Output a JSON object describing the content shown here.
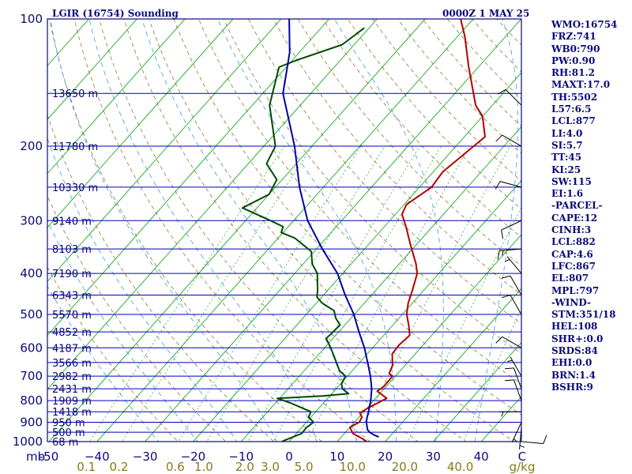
{
  "header": {
    "title": "LGIR (16754) Sounding",
    "datetime": "0000Z  1 MAY 25"
  },
  "colors": {
    "frame": "#0a0a78",
    "isobar": "#0000b4",
    "isotherm": "#00a000",
    "dry_adiabat": "#7a6a20",
    "moist_adiabat": "#3aa0d0",
    "mixing_ratio": "#2a9a2a",
    "temperature": "#b40000",
    "dewpoint": "#004a00",
    "parcel": "#0000aa",
    "mixing_ratio_labels": "#8a7a10"
  },
  "indices": [
    "WMO:16754",
    "FRZ:741",
    "WB0:790",
    "PW:0.90",
    "RH:81.2",
    "MAXT:17.0",
    "TH:5502",
    "L57:6.5",
    "LCL:877",
    "LI:4.0",
    "SI:5.7",
    "TT:45",
    "KI:25",
    "SW:115",
    "EI:1.6",
    "-PARCEL-",
    "CAPE:12",
    "CINH:3",
    "LCL:882",
    "CAP:4.6",
    "LFC:867",
    "EL:807",
    "MPL:797",
    "-WIND-",
    "STM:351/18",
    "HEL:108",
    "SHR+:0.0",
    "SRDS:84",
    "EHI:0.0",
    "BRN:1.4",
    "BSHR:9"
  ],
  "chart_data": {
    "type": "line",
    "chart_kind": "skew-T log-P sounding",
    "pressure_unit_label": "mb",
    "temperature_unit_label": "C",
    "mixing_ratio_unit_label": "g/kg",
    "pressure_range_hpa": [
      100,
      1000
    ],
    "pressure_scale": "log",
    "pressure_ticks": [
      100,
      200,
      300,
      400,
      500,
      600,
      700,
      800,
      900,
      1000
    ],
    "temperature_ticks": [
      -50,
      -40,
      -30,
      -20,
      -10,
      0,
      10,
      20,
      30,
      40
    ],
    "temperature_tick_labels": [
      "-50",
      "−40",
      "−30",
      "−20",
      "−10",
      "0",
      "10",
      "20",
      "30",
      "40"
    ],
    "mixing_ratio_labels": [
      "0.1",
      "0.2",
      "0.6",
      "1.0",
      "2.0",
      "3.0",
      "5.0",
      "10.0",
      "20.0",
      "40.0"
    ],
    "mixing_ratio_lines_gkg": [
      0.1,
      0.2,
      0.6,
      1.0,
      2.0,
      3.0,
      5.0,
      10.0,
      20.0,
      40.0
    ],
    "height_levels": [
      {
        "p": 150,
        "label": "13650 m"
      },
      {
        "p": 200,
        "label": "11780 m"
      },
      {
        "p": 250,
        "label": "10330 m"
      },
      {
        "p": 300,
        "label": "9140 m"
      },
      {
        "p": 350,
        "label": "8103 m"
      },
      {
        "p": 400,
        "label": "7190 m"
      },
      {
        "p": 450,
        "label": "6343 m"
      },
      {
        "p": 500,
        "label": "5570 m"
      },
      {
        "p": 550,
        "label": "4852 m"
      },
      {
        "p": 600,
        "label": "4187 m"
      },
      {
        "p": 650,
        "label": "3566 m"
      },
      {
        "p": 700,
        "label": "2982 m"
      },
      {
        "p": 750,
        "label": "2431 m"
      },
      {
        "p": 800,
        "label": "1909 m"
      },
      {
        "p": 850,
        "label": "1418 m"
      },
      {
        "p": 900,
        "label": "950 m"
      },
      {
        "p": 950,
        "label": "500 m"
      },
      {
        "p": 1000,
        "label": "68 m"
      }
    ],
    "series": [
      {
        "key": "temperature",
        "points": [
          [
            1010,
            17
          ],
          [
            985,
            14.8
          ],
          [
            957,
            11.8
          ],
          [
            925,
            10
          ],
          [
            900,
            11
          ],
          [
            875,
            10.6
          ],
          [
            855,
            9.4
          ],
          [
            850,
            9.6
          ],
          [
            830,
            10.3
          ],
          [
            790,
            12.3
          ],
          [
            760,
            9
          ],
          [
            740,
            9.5
          ],
          [
            700,
            9.4
          ],
          [
            690,
            8.2
          ],
          [
            660,
            7.4
          ],
          [
            620,
            5.2
          ],
          [
            590,
            5
          ],
          [
            560,
            5.4
          ],
          [
            530,
            3.3
          ],
          [
            500,
            0.9
          ],
          [
            470,
            -0.9
          ],
          [
            440,
            -2.3
          ],
          [
            400,
            -4.5
          ],
          [
            380,
            -6.5
          ],
          [
            340,
            -11.5
          ],
          [
            310,
            -15.5
          ],
          [
            290,
            -18.6
          ],
          [
            275,
            -19.5
          ],
          [
            250,
            -17.5
          ],
          [
            230,
            -18
          ],
          [
            190,
            -15.7
          ],
          [
            170,
            -20
          ],
          [
            160,
            -23.5
          ],
          [
            130,
            -32
          ],
          [
            110,
            -38.5
          ],
          [
            100,
            -42.6
          ]
        ]
      },
      {
        "key": "dewpoint",
        "points": [
          [
            1010,
            -2
          ],
          [
            990,
            -1
          ],
          [
            957,
            1.1
          ],
          [
            925,
            1
          ],
          [
            900,
            1.5
          ],
          [
            875,
            -0.5
          ],
          [
            850,
            -1
          ],
          [
            810,
            -6.9
          ],
          [
            790,
            -10.5
          ],
          [
            780,
            -1.5
          ],
          [
            770,
            3.5
          ],
          [
            750,
            1.3
          ],
          [
            730,
            0.2
          ],
          [
            700,
            -0.4
          ],
          [
            680,
            -2.6
          ],
          [
            600,
            -8.7
          ],
          [
            570,
            -11.4
          ],
          [
            560,
            -11.3
          ],
          [
            530,
            -11
          ],
          [
            510,
            -13.2
          ],
          [
            490,
            -14.9
          ],
          [
            470,
            -18.8
          ],
          [
            455,
            -21
          ],
          [
            440,
            -22
          ],
          [
            400,
            -25.3
          ],
          [
            380,
            -28.1
          ],
          [
            355,
            -30.6
          ],
          [
            330,
            -36.5
          ],
          [
            320,
            -40.4
          ],
          [
            310,
            -41.1
          ],
          [
            300,
            -44.8
          ],
          [
            280,
            -53
          ],
          [
            260,
            -50
          ],
          [
            240,
            -51.1
          ],
          [
            220,
            -56.2
          ],
          [
            200,
            -57.6
          ],
          [
            160,
            -66.4
          ],
          [
            130,
            -71.5
          ],
          [
            125,
            -69
          ],
          [
            115,
            -62.5
          ],
          [
            105,
            -61
          ]
        ]
      },
      {
        "key": "parcel",
        "points": [
          [
            975,
            17.8
          ],
          [
            965,
            16.5
          ],
          [
            950,
            15
          ],
          [
            937,
            14.1
          ],
          [
            900,
            12.5
          ],
          [
            882,
            11.9
          ],
          [
            850,
            11
          ],
          [
            800,
            9.4
          ],
          [
            750,
            7.4
          ],
          [
            700,
            4.8
          ],
          [
            650,
            1.7
          ],
          [
            600,
            -1.7
          ],
          [
            550,
            -5.8
          ],
          [
            500,
            -10.1
          ],
          [
            450,
            -15.5
          ],
          [
            400,
            -21.1
          ],
          [
            350,
            -28.8
          ],
          [
            300,
            -37.1
          ],
          [
            250,
            -45
          ],
          [
            200,
            -53.6
          ],
          [
            150,
            -65.8
          ],
          [
            120,
            -72
          ],
          [
            100,
            -78.3
          ]
        ]
      }
    ],
    "winds": [
      {
        "p": 1000,
        "dir": 95,
        "kt": 10
      },
      {
        "p": 925,
        "dir": 185,
        "kt": 5
      },
      {
        "p": 900,
        "dir": 205,
        "kt": 5
      },
      {
        "p": 850,
        "dir": 270,
        "kt": 5
      },
      {
        "p": 800,
        "dir": 340,
        "kt": 10
      },
      {
        "p": 750,
        "dir": 340,
        "kt": 10
      },
      {
        "p": 700,
        "dir": 330,
        "kt": 5
      },
      {
        "p": 600,
        "dir": 300,
        "kt": 10
      },
      {
        "p": 500,
        "dir": 330,
        "kt": 10
      },
      {
        "p": 450,
        "dir": 330,
        "kt": 10
      },
      {
        "p": 400,
        "dir": 320,
        "kt": 5
      },
      {
        "p": 350,
        "dir": 265,
        "kt": 15
      },
      {
        "p": 300,
        "dir": 245,
        "kt": 10
      },
      {
        "p": 250,
        "dir": 285,
        "kt": 10
      },
      {
        "p": 200,
        "dir": 300,
        "kt": 10
      },
      {
        "p": 160,
        "dir": 315,
        "kt": 10
      }
    ]
  }
}
